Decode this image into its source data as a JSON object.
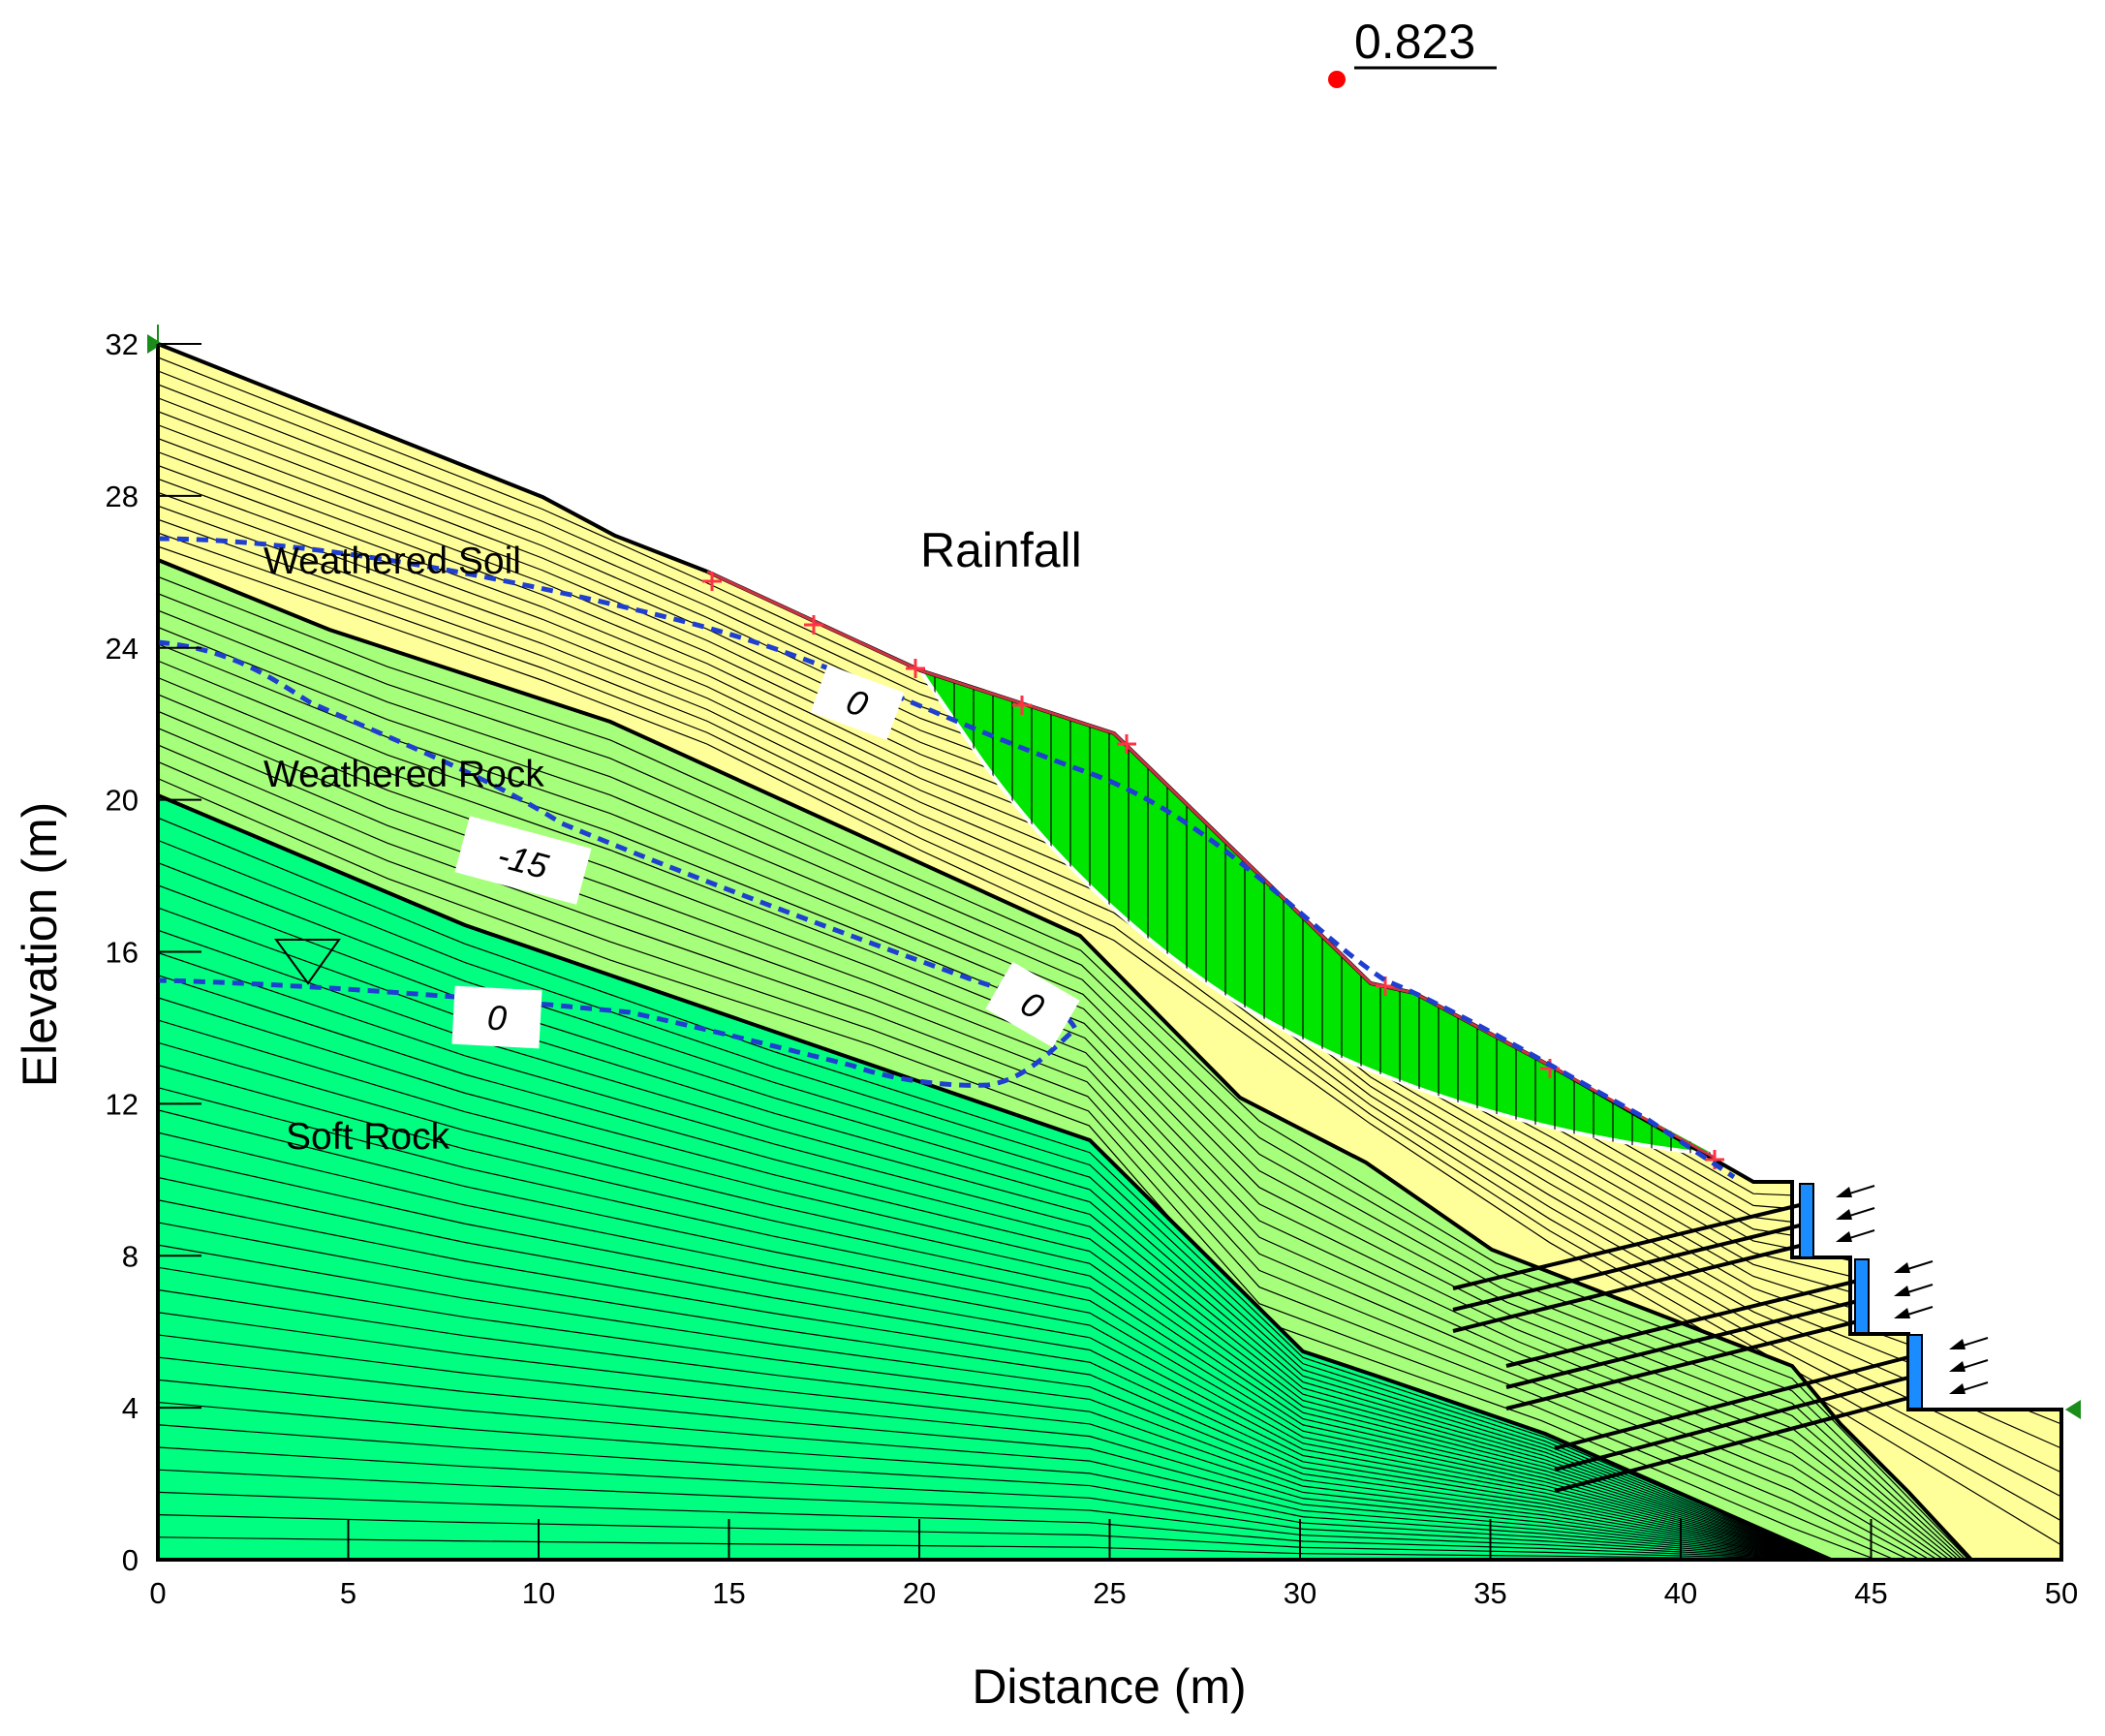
{
  "factor_of_safety": "0.823",
  "axes": {
    "xlabel": "Distance (m)",
    "ylabel": "Elevation (m)",
    "xlim": [
      0,
      50
    ],
    "ylim": [
      0,
      32
    ],
    "x_ticks": [
      "0",
      "5",
      "10",
      "15",
      "20",
      "25",
      "30",
      "35",
      "40",
      "45",
      "50"
    ],
    "y_ticks": [
      "0",
      "4",
      "8",
      "12",
      "16",
      "20",
      "24",
      "28",
      "32"
    ]
  },
  "labels": {
    "rainfall": "Rainfall",
    "weathered_soil": "Weathered Soil",
    "weathered_rock": "Weathered Rock",
    "soft_rock": "Soft Rock"
  },
  "contour_labels": [
    "0",
    "-15",
    "0",
    "0"
  ],
  "colors": {
    "weathered_soil": "#ffff99",
    "weathered_rock": "#a6ff7a",
    "soft_rock": "#00ff80",
    "sliding_mass": "#00e600",
    "piezometric": "#1f3fd0",
    "surface_marker": "#ff3344",
    "fos_point": "#ff0000",
    "wall": "#1a8cff"
  }
}
